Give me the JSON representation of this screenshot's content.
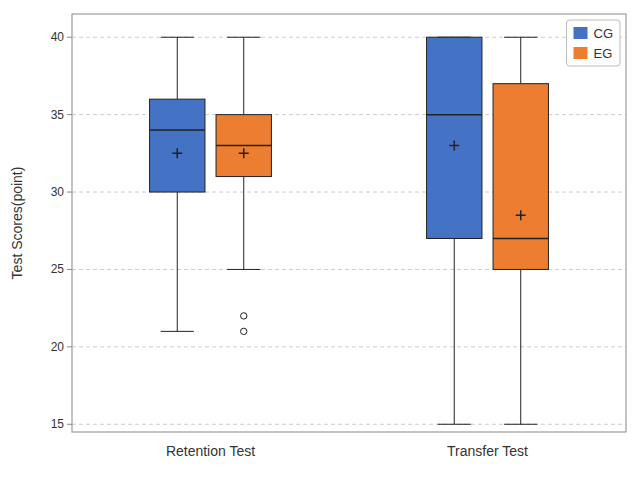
{
  "chart_data": {
    "type": "box",
    "ylabel": "Test Scores(point)",
    "categories": [
      "Retention Test",
      "Transfer Test"
    ],
    "series": [
      {
        "name": "CG",
        "color": "#4472C4",
        "values": [
          {
            "whislo": 21,
            "q1": 30,
            "med": 34,
            "q3": 36,
            "whishi": 40,
            "mean": 32.5,
            "fliers": []
          },
          {
            "whislo": 15,
            "q1": 27,
            "med": 35,
            "q3": 40,
            "whishi": 40,
            "mean": 33,
            "fliers": []
          }
        ]
      },
      {
        "name": "EG",
        "color": "#ED7D31",
        "values": [
          {
            "whislo": 25,
            "q1": 31,
            "med": 33,
            "q3": 35,
            "whishi": 40,
            "mean": 32.5,
            "fliers": [
              21.0,
              22.0
            ]
          },
          {
            "whislo": 15,
            "q1": 25,
            "med": 27,
            "q3": 37,
            "whishi": 40,
            "mean": 28.5,
            "fliers": []
          }
        ]
      }
    ],
    "ylim": [
      14.5,
      41.5
    ],
    "yticks": [
      15,
      20,
      25,
      30,
      35,
      40
    ],
    "grid": true,
    "legend": "upper right"
  }
}
